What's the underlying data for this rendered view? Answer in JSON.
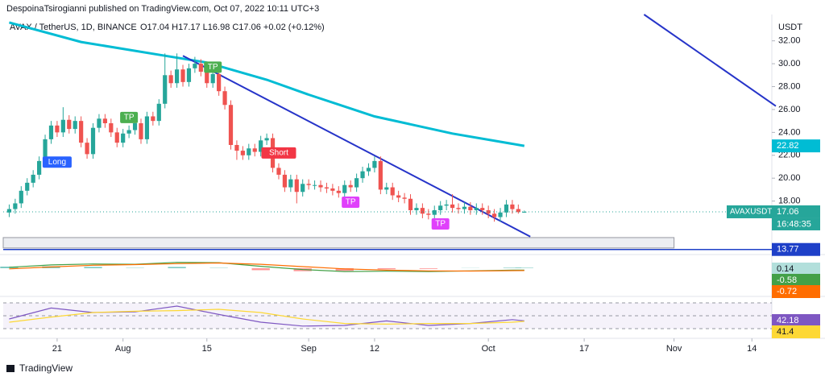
{
  "chart_data": [
    {
      "type": "candlestick",
      "publisher_note": "DespoinaTsirogianni published on TradingView.com, Oct 07, 2022 10:11 UTC+3",
      "title": "AVAX / TetherUS, 1D, BINANCE",
      "ohlc_legend": "O17.04 H17.17 L16.98 C17.06 +0.02 (+0.12%)",
      "currency": "USDT",
      "symbol_label": "AVAXUSDT",
      "countdown": "16:48:35",
      "brand": "TradingView",
      "up_color": "#26a69a",
      "down_color": "#ef5350",
      "x": [
        "2022-07-13",
        "2022-07-14",
        "2022-07-15",
        "2022-07-16",
        "2022-07-17",
        "2022-07-18",
        "2022-07-19",
        "2022-07-20",
        "2022-07-21",
        "2022-07-22",
        "2022-07-23",
        "2022-07-24",
        "2022-07-25",
        "2022-07-26",
        "2022-07-27",
        "2022-07-28",
        "2022-07-29",
        "2022-07-30",
        "2022-07-31",
        "2022-08-01",
        "2022-08-02",
        "2022-08-03",
        "2022-08-04",
        "2022-08-05",
        "2022-08-06",
        "2022-08-07",
        "2022-08-08",
        "2022-08-09",
        "2022-08-10",
        "2022-08-11",
        "2022-08-12",
        "2022-08-13",
        "2022-08-14",
        "2022-08-15",
        "2022-08-16",
        "2022-08-17",
        "2022-08-18",
        "2022-08-19",
        "2022-08-20",
        "2022-08-21",
        "2022-08-22",
        "2022-08-23",
        "2022-08-24",
        "2022-08-25",
        "2022-08-26",
        "2022-08-27",
        "2022-08-28",
        "2022-08-29",
        "2022-08-30",
        "2022-08-31",
        "2022-09-01",
        "2022-09-02",
        "2022-09-03",
        "2022-09-04",
        "2022-09-05",
        "2022-09-06",
        "2022-09-07",
        "2022-09-08",
        "2022-09-09",
        "2022-09-10",
        "2022-09-11",
        "2022-09-12",
        "2022-09-13",
        "2022-09-14",
        "2022-09-15",
        "2022-09-16",
        "2022-09-17",
        "2022-09-18",
        "2022-09-19",
        "2022-09-20",
        "2022-09-21",
        "2022-09-22",
        "2022-09-23",
        "2022-09-24",
        "2022-09-25",
        "2022-09-26",
        "2022-09-27",
        "2022-09-28",
        "2022-09-29",
        "2022-09-30",
        "2022-10-01",
        "2022-10-02",
        "2022-10-03",
        "2022-10-04",
        "2022-10-05",
        "2022-10-06",
        "2022-10-07"
      ],
      "open": [
        17.0,
        17.3,
        17.8,
        18.9,
        19.6,
        20.3,
        21.5,
        23.4,
        24.6,
        24.0,
        25.1,
        24.3,
        25.0,
        23.1,
        22.1,
        24.4,
        25.2,
        24.8,
        24.0,
        23.1,
        23.9,
        24.2,
        24.8,
        23.4,
        25.4,
        25.0,
        26.5,
        29.0,
        28.3,
        29.5,
        28.4,
        29.6,
        30.0,
        29.3,
        28.3,
        29.1,
        27.6,
        26.4,
        22.9,
        22.4,
        22.0,
        22.6,
        22.3,
        23.3,
        23.5,
        20.9,
        20.3,
        19.2,
        19.9,
        18.8,
        19.5,
        19.4,
        19.4,
        19.2,
        19.1,
        18.9,
        18.7,
        19.4,
        19.2,
        20.0,
        20.6,
        20.9,
        21.5,
        19.0,
        19.2,
        18.5,
        18.3,
        18.2,
        17.2,
        17.4,
        16.9,
        16.8,
        17.2,
        17.6,
        17.7,
        17.4,
        17.3,
        17.5,
        17.2,
        17.4,
        17.2,
        16.9,
        16.6,
        17.0,
        17.7,
        17.3,
        17.04
      ],
      "high": [
        17.7,
        18.2,
        19.3,
        20.0,
        20.7,
        21.9,
        23.8,
        25.0,
        25.0,
        26.2,
        25.5,
        25.4,
        25.4,
        23.5,
        24.8,
        25.6,
        25.6,
        25.2,
        24.4,
        24.3,
        24.6,
        25.2,
        25.2,
        25.8,
        25.8,
        26.9,
        30.9,
        29.4,
        30.9,
        29.9,
        30.0,
        30.6,
        30.4,
        29.7,
        29.5,
        29.5,
        28.0,
        26.8,
        23.3,
        22.8,
        23.0,
        23.0,
        23.7,
        23.9,
        23.9,
        21.3,
        20.7,
        20.3,
        20.3,
        19.9,
        19.9,
        19.8,
        19.8,
        19.6,
        19.5,
        19.3,
        19.8,
        19.8,
        20.4,
        21.0,
        21.3,
        21.9,
        21.9,
        19.6,
        19.6,
        18.9,
        18.7,
        18.6,
        17.8,
        17.8,
        17.3,
        17.6,
        18.0,
        18.1,
        18.6,
        17.8,
        17.9,
        17.9,
        17.8,
        17.8,
        17.6,
        17.3,
        17.4,
        18.1,
        18.1,
        17.7,
        17.17
      ],
      "low": [
        16.6,
        16.9,
        17.4,
        18.5,
        19.2,
        19.9,
        21.1,
        23.0,
        23.6,
        23.6,
        23.9,
        23.9,
        22.7,
        21.7,
        21.7,
        24.0,
        24.4,
        23.6,
        22.7,
        22.7,
        23.5,
        23.8,
        23.0,
        23.0,
        24.6,
        24.6,
        26.1,
        27.9,
        27.9,
        28.0,
        28.0,
        29.2,
        28.9,
        27.9,
        27.9,
        27.2,
        26.0,
        22.5,
        21.6,
        21.6,
        21.6,
        21.9,
        21.9,
        22.9,
        20.5,
        19.9,
        18.8,
        18.8,
        17.8,
        18.4,
        19.0,
        19.0,
        18.8,
        18.7,
        18.5,
        18.3,
        18.3,
        18.8,
        18.8,
        19.6,
        20.2,
        20.5,
        18.6,
        18.6,
        18.1,
        17.9,
        17.8,
        16.8,
        16.8,
        16.5,
        16.4,
        16.4,
        16.8,
        17.2,
        17.0,
        16.9,
        16.9,
        16.8,
        16.8,
        16.8,
        16.5,
        16.2,
        16.2,
        16.6,
        16.9,
        16.9,
        16.98
      ],
      "close": [
        17.3,
        17.8,
        18.9,
        19.6,
        20.3,
        21.5,
        23.4,
        24.6,
        24.0,
        25.1,
        24.3,
        25.0,
        23.1,
        22.1,
        24.4,
        25.2,
        24.8,
        24.0,
        23.1,
        23.9,
        24.2,
        24.8,
        23.4,
        25.4,
        25.0,
        26.5,
        29.0,
        28.3,
        29.5,
        28.4,
        29.6,
        30.0,
        29.3,
        28.3,
        29.1,
        27.6,
        26.4,
        22.9,
        22.4,
        22.0,
        22.6,
        22.3,
        23.3,
        23.5,
        20.9,
        20.3,
        19.2,
        19.9,
        18.8,
        19.5,
        19.4,
        19.4,
        19.2,
        19.1,
        18.9,
        18.7,
        19.4,
        19.2,
        20.0,
        20.6,
        20.9,
        21.5,
        19.0,
        19.2,
        18.5,
        18.3,
        18.2,
        17.2,
        17.4,
        16.9,
        16.8,
        17.2,
        17.6,
        17.7,
        17.4,
        17.3,
        17.5,
        17.2,
        17.4,
        17.2,
        16.9,
        16.6,
        17.0,
        17.7,
        17.3,
        17.04,
        17.06
      ],
      "overlays": [
        {
          "color": "#00bcd4",
          "width": 3,
          "x": [
            "2022-07-13",
            "2022-07-25",
            "2022-08-08",
            "2022-08-15",
            "2022-08-25",
            "2022-09-01",
            "2022-09-12",
            "2022-09-25",
            "2022-10-07"
          ],
          "values": [
            33.6,
            31.9,
            30.7,
            30.1,
            28.6,
            27.3,
            25.4,
            23.9,
            22.82
          ]
        },
        {
          "color": "#2634c9",
          "width": 2,
          "x": [
            "2022-08-11",
            "2022-10-08"
          ],
          "values": [
            30.7,
            14.9
          ]
        },
        {
          "color": "#2634c9",
          "width": 2,
          "x": [
            "2022-10-27",
            "2022-11-18"
          ],
          "values": [
            34.3,
            26.3
          ]
        }
      ],
      "hline": {
        "value": 13.77,
        "color": "#1e40c8"
      },
      "zone": {
        "x": [
          "2022-07-12",
          "2022-11-01"
        ],
        "y": [
          13.9,
          14.81
        ]
      },
      "markers": [
        {
          "label": "Long",
          "x": "2022-07-21",
          "y": 21.4,
          "color": "#2962ff"
        },
        {
          "label": "TP",
          "x": "2022-08-02",
          "y": 25.3,
          "color": "#4caf50"
        },
        {
          "label": "TP",
          "x": "2022-08-16",
          "y": 29.7,
          "color": "#4caf50"
        },
        {
          "label": "Short",
          "x": "2022-08-27",
          "y": 22.2,
          "color": "#f23645"
        },
        {
          "label": "TP",
          "x": "2022-09-08",
          "y": 17.9,
          "color": "#e040fb"
        },
        {
          "label": "TP",
          "x": "2022-09-23",
          "y": 16.0,
          "color": "#e040fb"
        }
      ],
      "xlim": [
        "2022-07-12",
        "2022-11-18"
      ],
      "xticks": [
        {
          "value": "2022-07-21",
          "label": "21"
        },
        {
          "value": "2022-08-01",
          "label": "Aug"
        },
        {
          "value": "2022-08-15",
          "label": "15"
        },
        {
          "value": "2022-09-01",
          "label": "Sep"
        },
        {
          "value": "2022-09-12",
          "label": "12"
        },
        {
          "value": "2022-10-01",
          "label": "Oct"
        },
        {
          "value": "2022-10-17",
          "label": "17"
        },
        {
          "value": "2022-11-01",
          "label": "Nov"
        },
        {
          "value": "2022-11-14",
          "label": "14"
        }
      ],
      "ylim": [
        13.75,
        34.3
      ],
      "yticks": [
        {
          "value": 18,
          "label": "18.00"
        },
        {
          "value": 20,
          "label": "20.00"
        },
        {
          "value": 22,
          "label": "22.00"
        },
        {
          "value": 24,
          "label": "24.00"
        },
        {
          "value": 26,
          "label": "26.00"
        },
        {
          "value": 28,
          "label": "28.00"
        },
        {
          "value": 30,
          "label": "30.00"
        },
        {
          "value": 32,
          "label": "32.00"
        }
      ],
      "grid": false
    },
    {
      "type": "macd",
      "x": [
        "2022-07-13",
        "2022-07-20",
        "2022-07-27",
        "2022-08-03",
        "2022-08-10",
        "2022-08-17",
        "2022-08-24",
        "2022-08-31",
        "2022-09-07",
        "2022-09-14",
        "2022-09-21",
        "2022-09-28",
        "2022-10-05",
        "2022-10-07"
      ],
      "series": [
        {
          "role": "histogram",
          "color": "#b2dfdb",
          "values": [
            0.5,
            0.6,
            0.4,
            0.1,
            0.4,
            0.1,
            -0.6,
            -0.9,
            -0.8,
            -0.3,
            -0.2,
            0.05,
            0.15,
            0.14
          ]
        },
        {
          "role": "line",
          "color": "#43a047",
          "values": [
            0.3,
            1.0,
            1.3,
            1.2,
            1.8,
            1.7,
            0.6,
            -0.4,
            -1.0,
            -0.9,
            -1.0,
            -0.8,
            -0.6,
            -0.58
          ]
        },
        {
          "role": "line",
          "color": "#ff6d00",
          "values": [
            -0.2,
            0.4,
            0.9,
            1.1,
            1.4,
            1.6,
            1.2,
            0.5,
            -0.2,
            -0.6,
            -0.8,
            -0.85,
            -0.75,
            -0.72
          ]
        }
      ],
      "ylim": [
        -3.2,
        3.2
      ]
    },
    {
      "type": "rsi",
      "x": [
        "2022-07-13",
        "2022-07-20",
        "2022-07-27",
        "2022-08-03",
        "2022-08-10",
        "2022-08-17",
        "2022-08-24",
        "2022-08-31",
        "2022-09-07",
        "2022-09-14",
        "2022-09-21",
        "2022-09-28",
        "2022-10-05",
        "2022-10-07"
      ],
      "series": [
        {
          "role": "line",
          "color": "#7e57c2",
          "values": [
            45,
            62,
            55,
            56,
            65,
            52,
            40,
            34,
            35,
            42,
            35,
            38,
            44,
            42.18
          ]
        },
        {
          "role": "line",
          "color": "#fdd835",
          "values": [
            40,
            48,
            55,
            57,
            58,
            60,
            55,
            45,
            38,
            37,
            38,
            38,
            40,
            41.4
          ]
        }
      ],
      "levels": [
        30,
        50,
        70
      ],
      "ylim": [
        25,
        77.5
      ]
    }
  ]
}
